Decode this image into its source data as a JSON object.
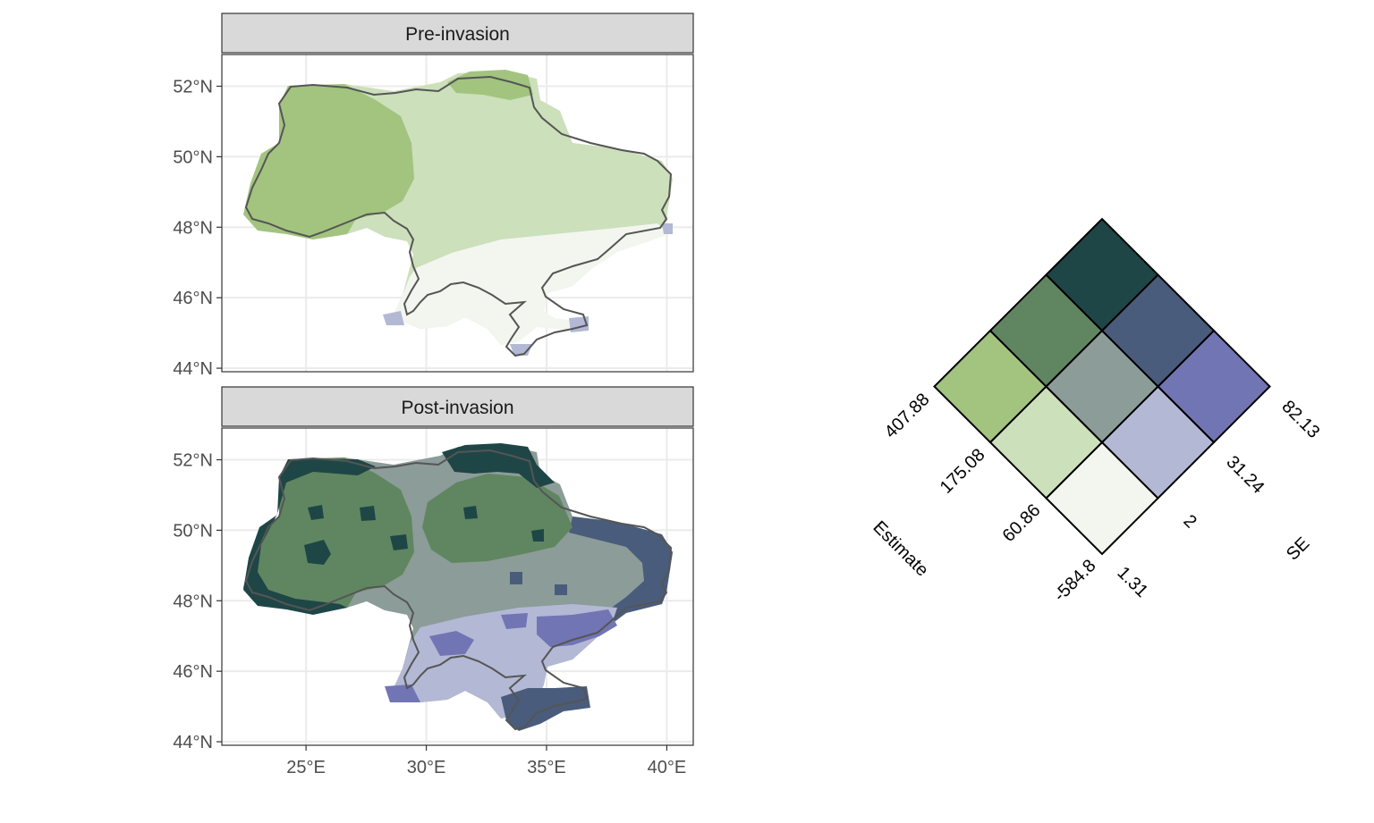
{
  "panels": [
    {
      "strip": "Pre-invasion"
    },
    {
      "strip": "Post-invasion"
    }
  ],
  "axes": {
    "x_ticks": [
      "25°E",
      "30°E",
      "35°E",
      "40°E"
    ],
    "y_ticks": [
      "52°N",
      "50°N",
      "48°N",
      "46°N",
      "44°N"
    ],
    "x_values": [
      25,
      30,
      35,
      40
    ],
    "y_values": [
      52,
      50,
      48,
      46,
      44
    ],
    "xlim": [
      21.5,
      41.1
    ],
    "ylim": [
      43.9,
      52.9
    ]
  },
  "legend": {
    "type": "bivariate",
    "axis1_title": "Estimate",
    "axis2_title": "SE",
    "estimate_breaks": [
      "-584.8",
      "60.86",
      "175.08",
      "407.88"
    ],
    "se_breaks": [
      "1.31",
      "2",
      "31.24",
      "82.13"
    ],
    "colors": {
      "est1_se1": "#f3f6ef",
      "est2_se1": "#cce0bb",
      "est3_se1": "#a2c47f",
      "est1_se2": "#b3b8d5",
      "est2_se2": "#8c9c98",
      "est3_se2": "#5f8660",
      "est1_se3": "#7275b4",
      "est2_se3": "#4a5c7c",
      "est3_se3": "#1f4646"
    }
  },
  "colors": {
    "strip_bg": "#d9d9d9",
    "panel_border": "#333333",
    "grid": "#ebebeb",
    "outline": "#555555"
  }
}
